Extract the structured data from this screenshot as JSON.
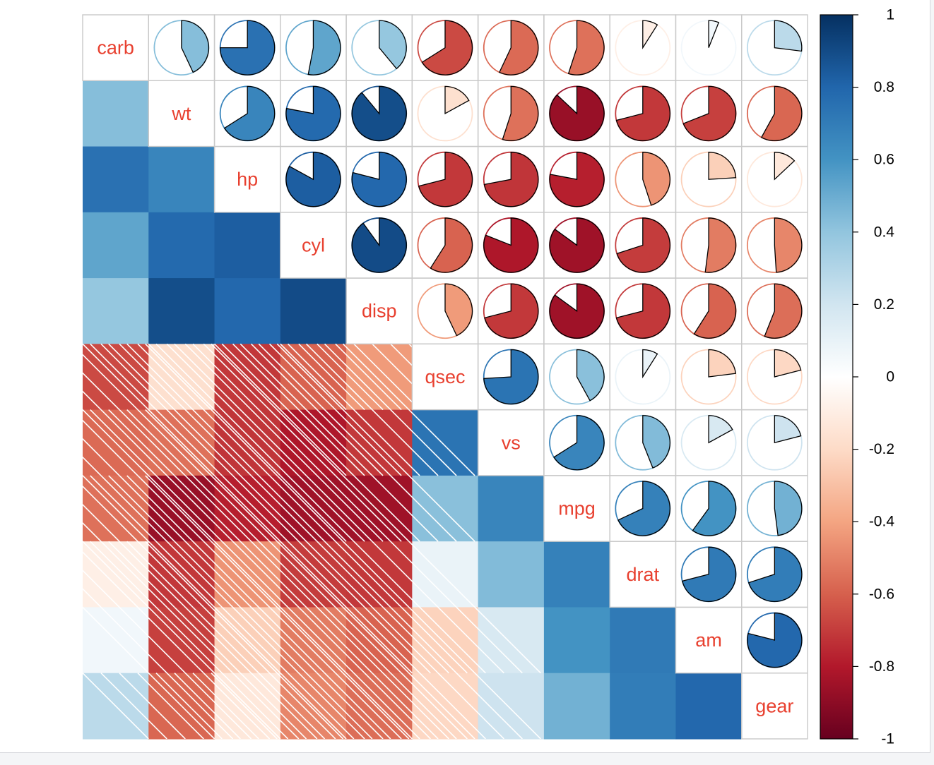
{
  "chart_data": {
    "type": "heatmap",
    "title": "",
    "variables": [
      "carb",
      "wt",
      "hp",
      "cyl",
      "disp",
      "qsec",
      "vs",
      "mpg",
      "drat",
      "am",
      "gear"
    ],
    "matrix": [
      [
        1.0,
        0.43,
        0.75,
        0.53,
        0.39,
        -0.66,
        -0.57,
        -0.55,
        -0.09,
        0.06,
        0.27
      ],
      [
        0.43,
        1.0,
        0.66,
        0.78,
        0.89,
        -0.17,
        -0.55,
        -0.87,
        -0.71,
        -0.69,
        -0.58
      ],
      [
        0.75,
        0.66,
        1.0,
        0.83,
        0.79,
        -0.71,
        -0.72,
        -0.78,
        -0.45,
        -0.24,
        -0.13
      ],
      [
        0.53,
        0.78,
        0.83,
        1.0,
        0.9,
        -0.59,
        -0.81,
        -0.85,
        -0.7,
        -0.52,
        -0.49
      ],
      [
        0.39,
        0.89,
        0.79,
        0.9,
        1.0,
        -0.43,
        -0.71,
        -0.85,
        -0.71,
        -0.59,
        -0.56
      ],
      [
        -0.66,
        -0.17,
        -0.71,
        -0.59,
        -0.43,
        1.0,
        0.74,
        0.42,
        0.09,
        -0.23,
        -0.21
      ],
      [
        -0.57,
        -0.55,
        -0.72,
        -0.81,
        -0.71,
        0.74,
        1.0,
        0.66,
        0.44,
        0.17,
        0.21
      ],
      [
        -0.55,
        -0.87,
        -0.78,
        -0.85,
        -0.85,
        0.42,
        0.66,
        1.0,
        0.68,
        0.6,
        0.48
      ],
      [
        -0.09,
        -0.71,
        -0.45,
        -0.7,
        -0.71,
        0.09,
        0.44,
        0.68,
        1.0,
        0.71,
        0.7
      ],
      [
        0.06,
        -0.69,
        -0.24,
        -0.52,
        -0.59,
        -0.23,
        0.17,
        0.6,
        0.71,
        1.0,
        0.79
      ],
      [
        0.27,
        -0.58,
        -0.13,
        -0.49,
        -0.56,
        -0.21,
        0.21,
        0.48,
        0.7,
        0.79,
        1.0
      ]
    ],
    "lower_display": "color squares, negative correlations shaded with diagonal lines",
    "upper_display": "pie",
    "colorbar": {
      "ticks": [
        "1",
        "0.8",
        "0.6",
        "0.4",
        "0.2",
        "0",
        "-0.2",
        "-0.4",
        "-0.6",
        "-0.8",
        "-1"
      ],
      "range": [
        -1,
        1
      ],
      "colors": [
        "#67001F",
        "#B2182B",
        "#D6604D",
        "#F4A582",
        "#FDDBC7",
        "#FFFFFF",
        "#D1E5F0",
        "#92C5DE",
        "#4393C3",
        "#2166AC",
        "#053061"
      ]
    },
    "label_color": "#E8402F",
    "grid": true,
    "legend_placement": "right"
  }
}
